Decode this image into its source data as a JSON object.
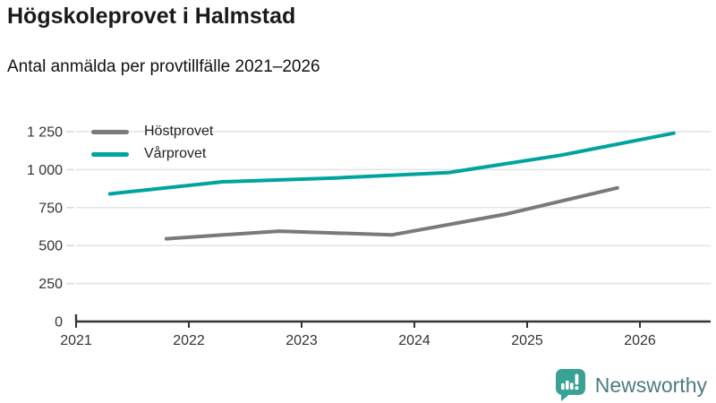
{
  "header": {
    "title": "Högskoleprovet i Halmstad",
    "subtitle": "Antal anmälda per provtillfälle 2021–2026"
  },
  "chart_data": {
    "type": "line",
    "title": "Högskoleprovet i Halmstad",
    "subtitle": "Antal anmälda per provtillfälle 2021–2026",
    "xlabel": "",
    "ylabel": "",
    "xlim": [
      2021,
      2026.62
    ],
    "ylim": [
      0,
      1250
    ],
    "grid": true,
    "legend_position": "top-left",
    "x_ticks": [
      {
        "value": 2021,
        "label": "2021"
      },
      {
        "value": 2022,
        "label": "2022"
      },
      {
        "value": 2023,
        "label": "2023"
      },
      {
        "value": 2024,
        "label": "2024"
      },
      {
        "value": 2025,
        "label": "2025"
      },
      {
        "value": 2026,
        "label": "2026"
      }
    ],
    "y_ticks": [
      {
        "value": 0,
        "label": "0"
      },
      {
        "value": 250,
        "label": "250"
      },
      {
        "value": 500,
        "label": "500"
      },
      {
        "value": 750,
        "label": "750"
      },
      {
        "value": 1000,
        "label": "1 000"
      },
      {
        "value": 1250,
        "label": "1 250"
      }
    ],
    "series": [
      {
        "name": "Höstprovet",
        "color": "#7a7a7a",
        "points": [
          {
            "x": 2021.8,
            "y": 545
          },
          {
            "x": 2022.8,
            "y": 595
          },
          {
            "x": 2023.8,
            "y": 570
          },
          {
            "x": 2024.8,
            "y": 705
          },
          {
            "x": 2025.8,
            "y": 880
          }
        ]
      },
      {
        "name": "Vårprovet",
        "color": "#00a49e",
        "points": [
          {
            "x": 2021.3,
            "y": 840
          },
          {
            "x": 2022.3,
            "y": 920
          },
          {
            "x": 2023.3,
            "y": 945
          },
          {
            "x": 2024.3,
            "y": 980
          },
          {
            "x": 2025.3,
            "y": 1095
          },
          {
            "x": 2026.3,
            "y": 1240
          }
        ]
      }
    ],
    "style": {
      "gridline_color": "#e3e3e3",
      "y_tick_color": "#d8d8d8",
      "axis_color": "#333333",
      "tick_label_color": "#333333",
      "line_width": 4
    }
  },
  "footer": {
    "brand": "Newsworthy",
    "logo_color": "#3aa294",
    "text_color": "#4d7b82",
    "logo_icon": "bar-chart-speech-bubble"
  }
}
